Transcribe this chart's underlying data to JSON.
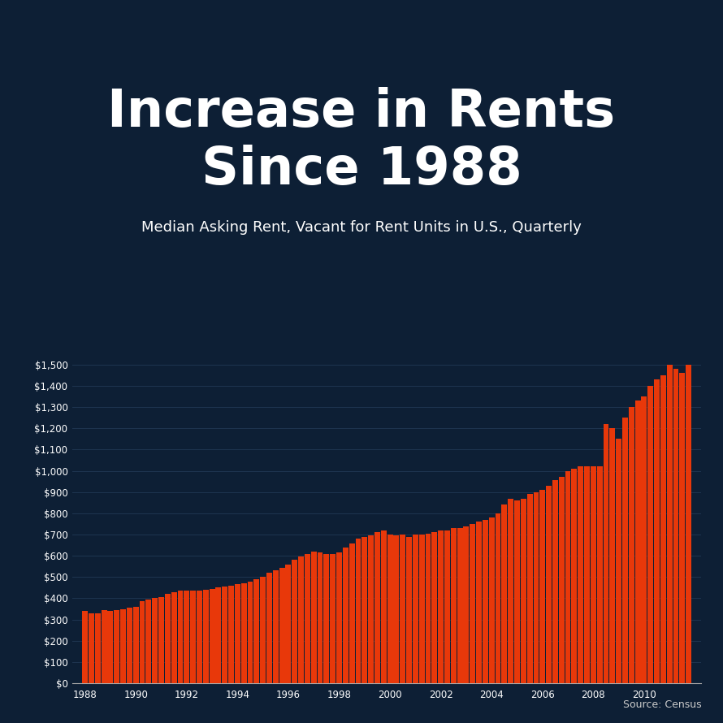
{
  "title_line1": "Increase in Rents",
  "title_line2": "Since 1988",
  "subtitle": "Median Asking Rent, Vacant for Rent Units in U.S., Quarterly",
  "source": "Source: Census",
  "bar_color": "#E8380A",
  "background_color": "#0d1f35",
  "text_color": "#FFFFFF",
  "grid_color": "#1e3550",
  "ylim": [
    0,
    1600
  ],
  "start_year": 1988,
  "values": [
    340,
    330,
    330,
    345,
    340,
    345,
    350,
    355,
    360,
    385,
    395,
    400,
    405,
    420,
    430,
    435,
    435,
    435,
    435,
    440,
    445,
    450,
    455,
    460,
    465,
    470,
    480,
    490,
    500,
    520,
    530,
    545,
    560,
    580,
    595,
    610,
    620,
    615,
    610,
    610,
    615,
    640,
    660,
    680,
    690,
    695,
    710,
    720,
    700,
    695,
    700,
    690,
    700,
    700,
    705,
    710,
    720,
    720,
    730,
    730,
    740,
    750,
    760,
    770,
    780,
    800,
    840,
    870,
    860,
    870,
    890,
    900,
    910,
    930,
    955,
    970,
    1000,
    1010,
    1020,
    1020,
    1020,
    1020,
    1220,
    1200,
    1150,
    1250,
    1300,
    1330,
    1350,
    1400,
    1430,
    1450,
    1500,
    1480,
    1460,
    1500
  ]
}
